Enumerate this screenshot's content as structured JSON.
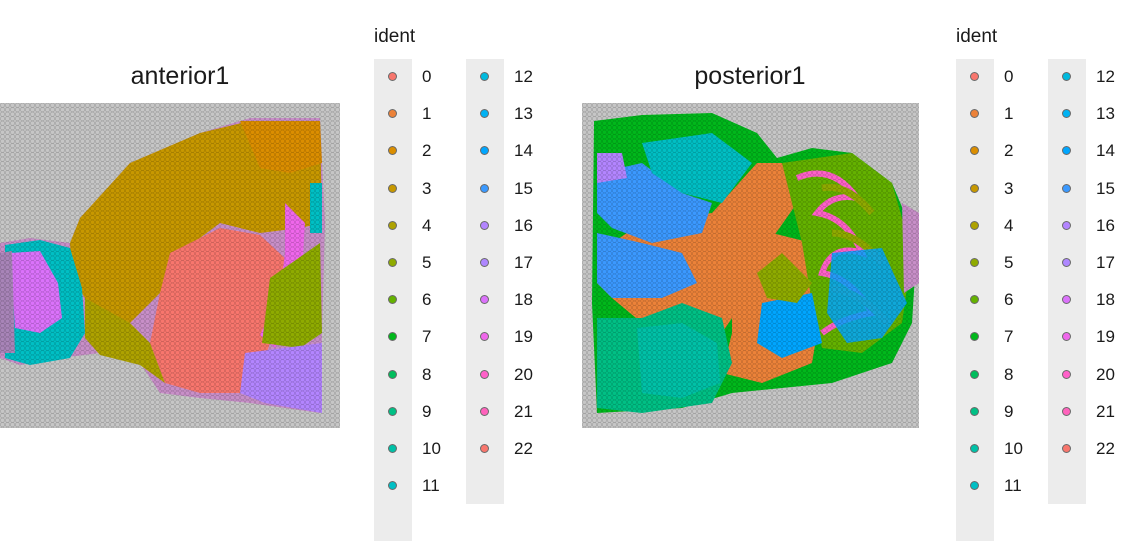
{
  "chart_data": [
    {
      "type": "spatial-scatter",
      "title": "anterior1",
      "legend_title": "ident",
      "categories": [
        "0",
        "1",
        "2",
        "3",
        "4",
        "5",
        "6",
        "7",
        "8",
        "9",
        "10",
        "11",
        "12",
        "13",
        "14",
        "15",
        "16",
        "17",
        "18",
        "19",
        "20",
        "21",
        "22"
      ],
      "colors": [
        "#f8766d",
        "#ec8239",
        "#db8e00",
        "#c79800",
        "#aea200",
        "#8fab00",
        "#64b200",
        "#00b81b",
        "#00bd5c",
        "#00c085",
        "#00c1a7",
        "#00bfc4",
        "#00bade",
        "#00b2f3",
        "#00a6ff",
        "#3b99ff",
        "#b385ff",
        "#ae87ff",
        "#db72fb",
        "#ef67eb",
        "#ff61c9",
        "#ff62bc",
        "#f8766d"
      ],
      "legend_placement": "right"
    },
    {
      "type": "spatial-scatter",
      "title": "posterior1",
      "legend_title": "ident",
      "categories": [
        "0",
        "1",
        "2",
        "3",
        "4",
        "5",
        "6",
        "7",
        "8",
        "9",
        "10",
        "11",
        "12",
        "13",
        "14",
        "15",
        "16",
        "17",
        "18",
        "19",
        "20",
        "21",
        "22"
      ],
      "colors": [
        "#f8766d",
        "#ec8239",
        "#db8e00",
        "#c79800",
        "#aea200",
        "#8fab00",
        "#64b200",
        "#00b81b",
        "#00bd5c",
        "#00c085",
        "#00c1a7",
        "#00bfc4",
        "#00bade",
        "#00b2f3",
        "#00a6ff",
        "#3b99ff",
        "#b385ff",
        "#ae87ff",
        "#db72fb",
        "#ef67eb",
        "#ff61c9",
        "#ff62bc",
        "#f8766d"
      ],
      "legend_placement": "right"
    }
  ]
}
